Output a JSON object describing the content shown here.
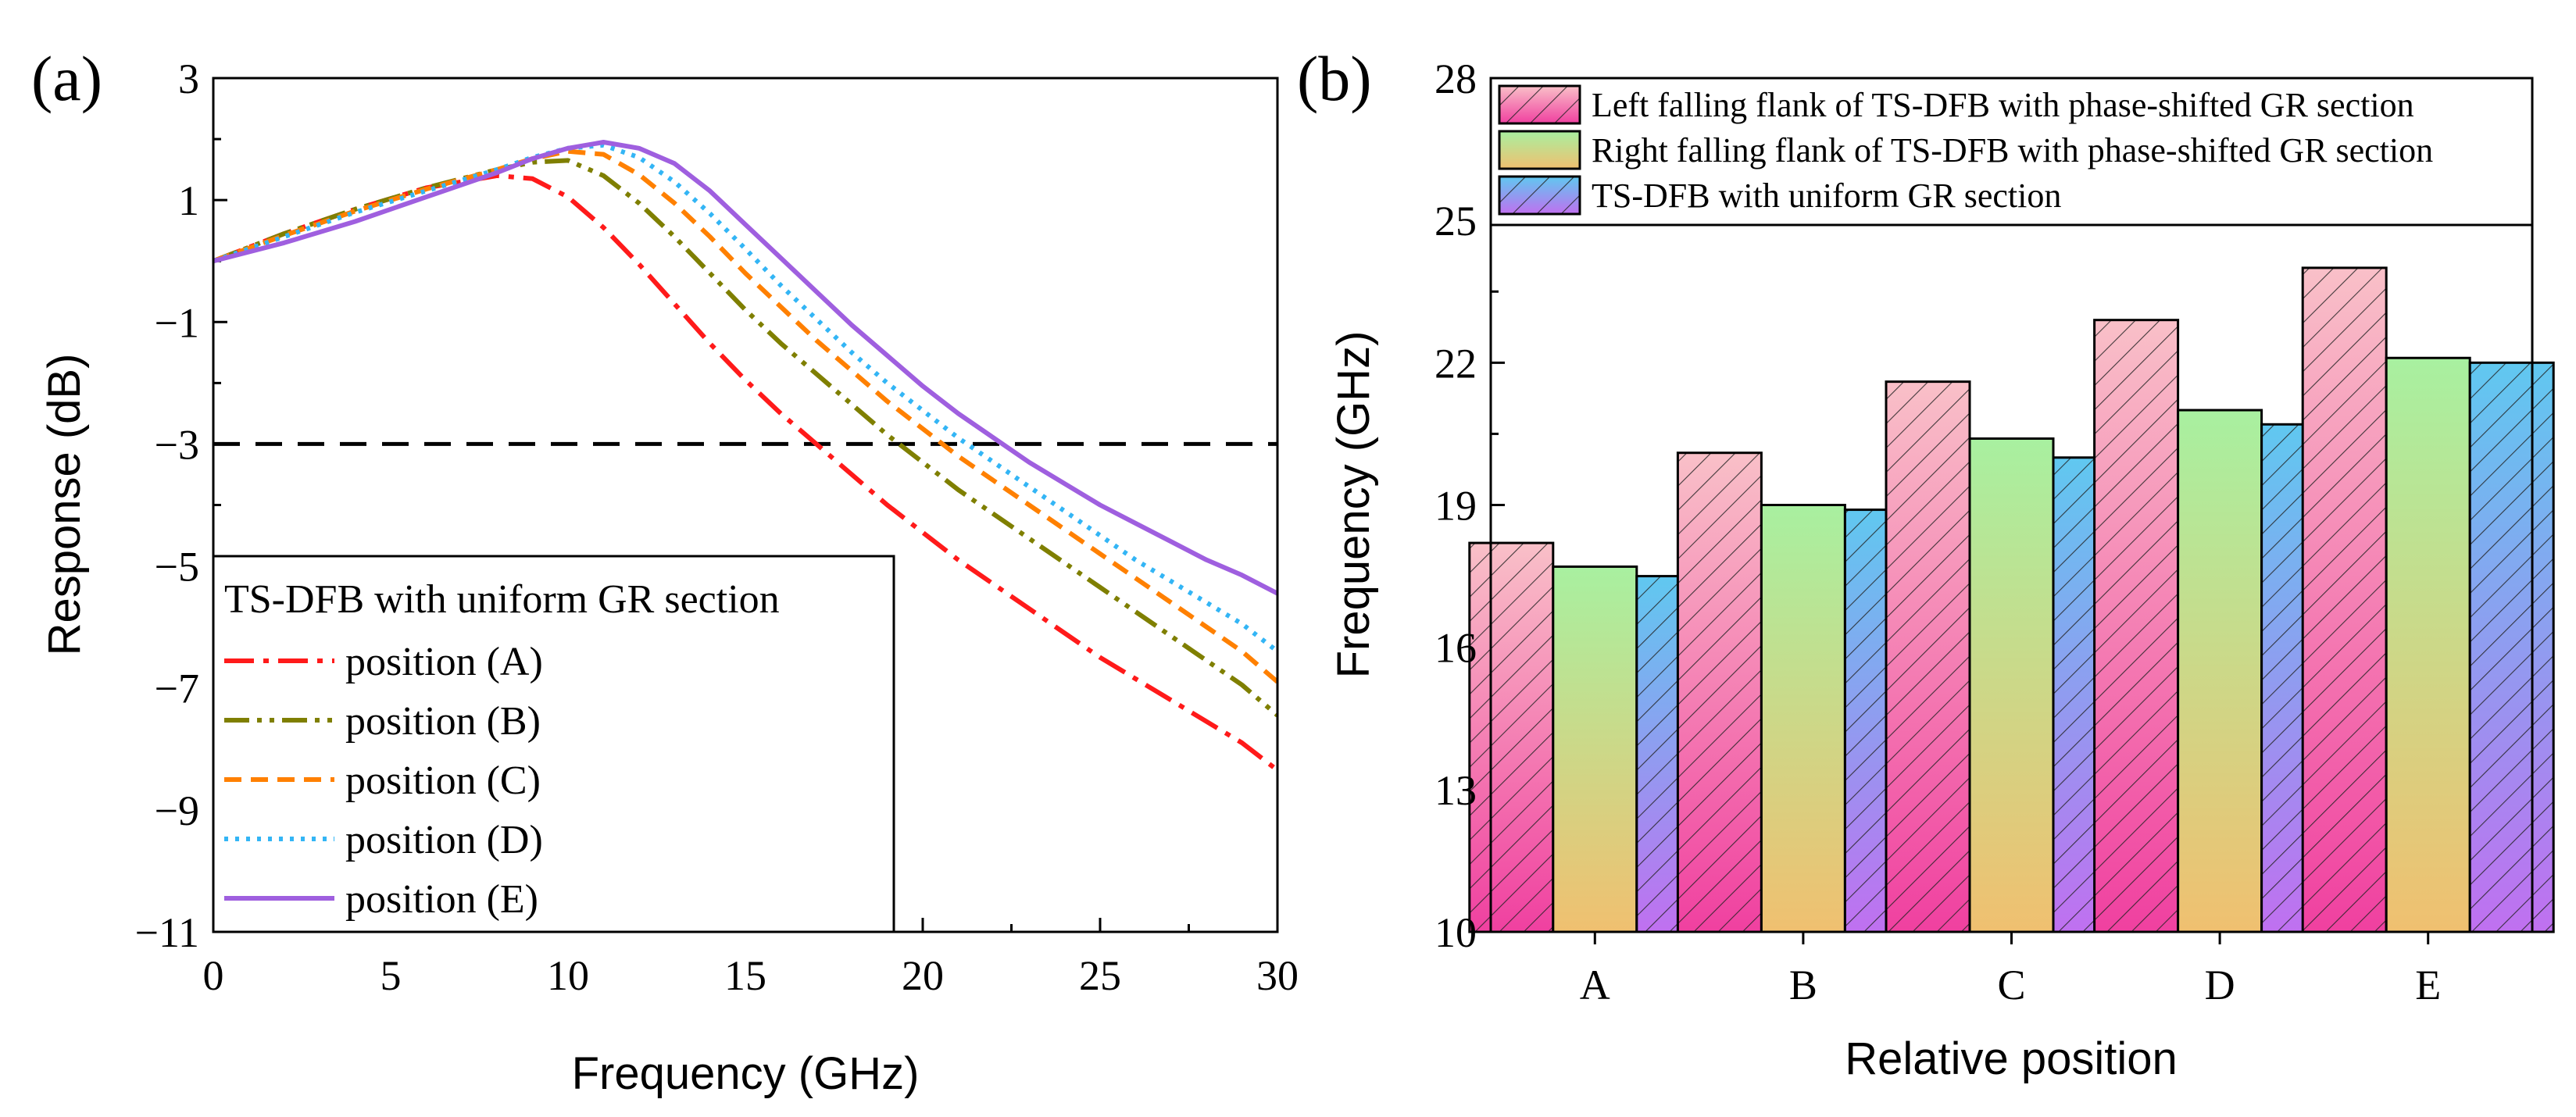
{
  "chart_data": [
    {
      "panel_label": "(a)",
      "type": "line",
      "title": "",
      "xlabel": "Frequency (GHz)",
      "ylabel": "Response (dB)",
      "xlim": [
        0,
        30
      ],
      "ylim": [
        -11,
        3
      ],
      "xticks": [
        "0",
        "5",
        "10",
        "15",
        "20",
        "25",
        "30"
      ],
      "yticks": [
        "3",
        "1",
        "−1",
        "−3",
        "−5",
        "−7",
        "−9",
        "−11"
      ],
      "legend": {
        "title": "TS-DFB with uniform GR section",
        "placement": "bottom-left"
      },
      "reference_line": {
        "y": -3,
        "style": "dashed",
        "color": "#000000"
      },
      "series": [
        {
          "name": "position (A)",
          "color": "#ff1a1a",
          "dash": "dashdot",
          "x": [
            0,
            2,
            4,
            6,
            8,
            9,
            10,
            11,
            12,
            13,
            14,
            15,
            16,
            17,
            18,
            19,
            20,
            21,
            22,
            23,
            24,
            25,
            26,
            27,
            28,
            29,
            30
          ],
          "y": [
            0,
            0.45,
            0.85,
            1.2,
            1.4,
            1.35,
            1.05,
            0.55,
            -0.05,
            -0.7,
            -1.35,
            -1.95,
            -2.5,
            -3.0,
            -3.5,
            -4.0,
            -4.45,
            -4.9,
            -5.3,
            -5.7,
            -6.1,
            -6.5,
            -6.85,
            -7.2,
            -7.55,
            -7.9,
            -8.35
          ]
        },
        {
          "name": "position (B)",
          "color": "#7f7f00",
          "dash": "dashdotdot",
          "x": [
            0,
            2,
            4,
            6,
            8,
            9,
            10,
            11,
            12,
            13,
            14,
            15,
            16,
            17,
            18,
            19,
            20,
            21,
            22,
            23,
            24,
            25,
            26,
            27,
            28,
            29,
            30
          ],
          "y": [
            0,
            0.45,
            0.85,
            1.2,
            1.5,
            1.62,
            1.65,
            1.4,
            0.95,
            0.4,
            -0.2,
            -0.8,
            -1.35,
            -1.85,
            -2.35,
            -2.85,
            -3.3,
            -3.75,
            -4.15,
            -4.55,
            -4.95,
            -5.35,
            -5.75,
            -6.15,
            -6.55,
            -6.95,
            -7.45
          ]
        },
        {
          "name": "position (C)",
          "color": "#ff8000",
          "dash": "dash",
          "x": [
            0,
            2,
            4,
            6,
            8,
            9,
            10,
            11,
            12,
            13,
            14,
            15,
            16,
            17,
            18,
            19,
            20,
            21,
            22,
            23,
            24,
            25,
            26,
            27,
            28,
            29,
            30
          ],
          "y": [
            0,
            0.42,
            0.82,
            1.18,
            1.5,
            1.68,
            1.8,
            1.75,
            1.42,
            0.95,
            0.4,
            -0.2,
            -0.75,
            -1.3,
            -1.8,
            -2.3,
            -2.75,
            -3.2,
            -3.6,
            -4.0,
            -4.4,
            -4.8,
            -5.2,
            -5.6,
            -6.0,
            -6.4,
            -6.9
          ]
        },
        {
          "name": "position (D)",
          "color": "#33b5f5",
          "dash": "dot",
          "x": [
            0,
            2,
            4,
            6,
            8,
            9,
            10,
            11,
            12,
            13,
            14,
            15,
            16,
            17,
            18,
            19,
            20,
            21,
            22,
            23,
            24,
            25,
            26,
            27,
            28,
            29,
            30
          ],
          "y": [
            0,
            0.4,
            0.8,
            1.15,
            1.5,
            1.7,
            1.85,
            1.9,
            1.7,
            1.3,
            0.78,
            0.2,
            -0.4,
            -0.95,
            -1.5,
            -2.0,
            -2.45,
            -2.9,
            -3.3,
            -3.7,
            -4.1,
            -4.5,
            -4.9,
            -5.25,
            -5.6,
            -5.95,
            -6.4
          ]
        },
        {
          "name": "position (E)",
          "color": "#9f5fdf",
          "dash": "solid",
          "x": [
            0,
            2,
            4,
            6,
            8,
            9,
            10,
            11,
            12,
            13,
            14,
            15,
            16,
            17,
            18,
            19,
            20,
            21,
            22,
            23,
            24,
            25,
            26,
            27,
            28,
            29,
            30
          ],
          "y": [
            0,
            0.3,
            0.65,
            1.05,
            1.45,
            1.68,
            1.85,
            1.95,
            1.85,
            1.6,
            1.15,
            0.6,
            0.05,
            -0.5,
            -1.05,
            -1.55,
            -2.05,
            -2.5,
            -2.9,
            -3.3,
            -3.65,
            -4.0,
            -4.3,
            -4.6,
            -4.9,
            -5.15,
            -5.45
          ]
        }
      ]
    },
    {
      "panel_label": "(b)",
      "type": "bar",
      "title": "",
      "xlabel": "Relative position",
      "ylabel": "Frequency (GHz)",
      "ylim": [
        10,
        28
      ],
      "yticks": [
        "10",
        "13",
        "16",
        "19",
        "22",
        "25",
        "28"
      ],
      "categories": [
        "A",
        "B",
        "C",
        "D",
        "E"
      ],
      "legend": {
        "placement": "top-right"
      },
      "series": [
        {
          "name": "Left falling flank of TS-DFB with phase-shifted GR section",
          "values": [
            18.2,
            20.1,
            21.6,
            22.9,
            24.0
          ],
          "gradient": [
            "#f9c0c8",
            "#f040a0"
          ],
          "hatch": "diagonal"
        },
        {
          "name": "Right falling flank of TS-DFB with phase-shifted GR section",
          "values": [
            17.7,
            19.0,
            20.4,
            21.0,
            22.1
          ],
          "gradient": [
            "#a8f0a0",
            "#f0c070"
          ],
          "hatch": "none"
        },
        {
          "name": "TS-DFB with uniform GR section",
          "values": [
            17.5,
            18.9,
            20.0,
            20.7,
            22.0
          ],
          "gradient": [
            "#60c8f0",
            "#c070f0"
          ],
          "hatch": "diagonal"
        }
      ]
    }
  ]
}
